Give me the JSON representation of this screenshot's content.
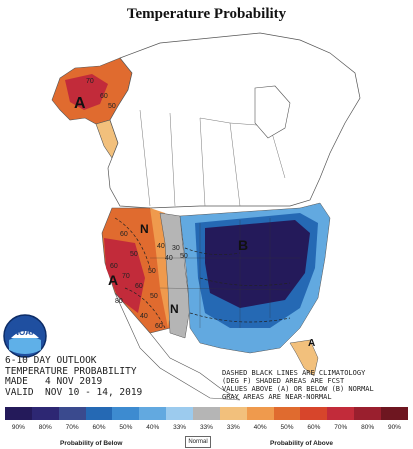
{
  "title": "Temperature Probability",
  "outlook": {
    "line1": "6-10 DAY OUTLOOK",
    "line2": "TEMPERATURE PROBABILITY",
    "line3": "MADE   4 NOV 2019",
    "line4": "VALID  NOV 10 - 14, 2019"
  },
  "notes": {
    "line1": "DASHED BLACK LINES ARE CLIMATOLOGY",
    "line2": "(DEG F) SHADED AREAS ARE FCST",
    "line3": "VALUES ABOVE (A) OR BELOW (B) NORMAL",
    "line4": "GRAY AREAS ARE NEAR-NORMAL"
  },
  "logo_text": "NOAA",
  "map_letters": {
    "alaska_above": "A",
    "west_above": "A",
    "east_below": "B",
    "florida_above": "A",
    "near_normal_1": "N",
    "near_normal_2": "N"
  },
  "contour_labels": [
    "70",
    "60",
    "50",
    "40",
    "30",
    "60",
    "50",
    "40",
    "50",
    "70",
    "80",
    "60",
    "50",
    "40",
    "60",
    "60",
    "50"
  ],
  "legend": {
    "swatches": [
      "#241a5a",
      "#2d2773",
      "#3a4a8e",
      "#2569b4",
      "#3d8bd0",
      "#62a9e0",
      "#9ccbee",
      "#b5b5b5",
      "#f2c07c",
      "#ef9a4d",
      "#e06b2f",
      "#d7452b",
      "#c22b3a",
      "#9a1f2e",
      "#6e1620"
    ],
    "percents": [
      "90%",
      "80%",
      "70%",
      "60%",
      "50%",
      "40%",
      "33%",
      "33%",
      "33%",
      "40%",
      "50%",
      "60%",
      "70%",
      "80%",
      "90%"
    ],
    "below_label": "Probability of Below",
    "normal_label": "Normal",
    "above_label": "Probability of Above"
  }
}
